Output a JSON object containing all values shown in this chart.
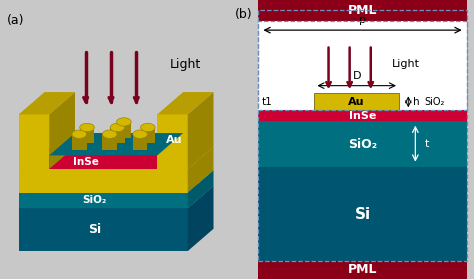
{
  "fig_width": 4.74,
  "fig_height": 2.79,
  "bg_color": "#c8c8c8",
  "colors": {
    "pml": "#8b0018",
    "au": "#d4b800",
    "au_dark": "#9a8500",
    "au_mid": "#b89e00",
    "inse": "#cc0033",
    "inse_dark": "#990022",
    "sio2_front": "#006f80",
    "sio2_top": "#009aaa",
    "sio2_right": "#005a6a",
    "si_front": "#005570",
    "si_top": "#0077a0",
    "si_right": "#004460",
    "teal_dark": "#006070",
    "white": "#ffffff",
    "arrow_dark": "#7a0020",
    "dashed_border": "#7090b8"
  },
  "panel_a": {
    "label": "(a)",
    "light_label": "Light",
    "au_label": "Au",
    "inse_label": "InSe",
    "sio2_label": "SiO₂",
    "si_label": "Si"
  },
  "panel_b": {
    "label": "(b)",
    "pml_label": "PML",
    "p_label": "p",
    "light_label": "Light",
    "au_label": "Au",
    "inse_label": "InSe",
    "sio2_label": "SiO₂",
    "si_label": "Si",
    "d_label": "D",
    "h_label": "h",
    "t1_label": "t1",
    "t_label": "t"
  }
}
